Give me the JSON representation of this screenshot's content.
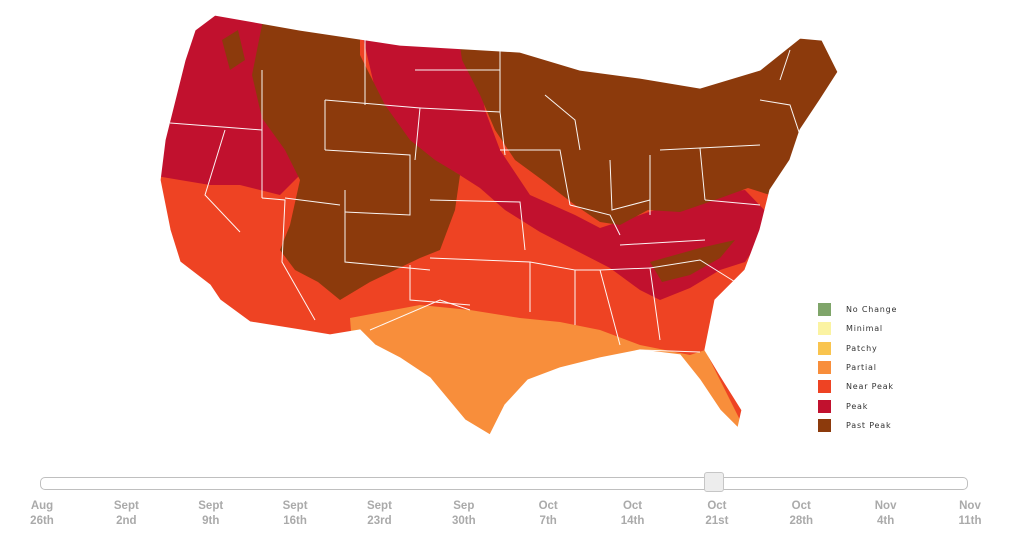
{
  "map": {
    "region_name": "Contiguous United States",
    "colors": {
      "past_peak": "#8c3a0c",
      "peak": "#c1112e",
      "near_peak": "#ee4323",
      "partial": "#f88e3b",
      "state_border": "#ffffff"
    }
  },
  "legend": {
    "items": [
      {
        "label": "No Change",
        "color": "#7fa56a"
      },
      {
        "label": "Minimal",
        "color": "#fbf3a2"
      },
      {
        "label": "Patchy",
        "color": "#f9c44e"
      },
      {
        "label": "Partial",
        "color": "#f88e3b"
      },
      {
        "label": "Near Peak",
        "color": "#ee4323"
      },
      {
        "label": "Peak",
        "color": "#c1112e"
      },
      {
        "label": "Past Peak",
        "color": "#8c3a0c"
      }
    ]
  },
  "timeline": {
    "selected_index": 8,
    "selected_label": "Oct 21st",
    "ticks": [
      {
        "line1": "Aug",
        "line2": "26th"
      },
      {
        "line1": "Sept",
        "line2": "2nd"
      },
      {
        "line1": "Sept",
        "line2": "9th"
      },
      {
        "line1": "Sept",
        "line2": "16th"
      },
      {
        "line1": "Sept",
        "line2": "23rd"
      },
      {
        "line1": "Sep",
        "line2": "30th"
      },
      {
        "line1": "Oct",
        "line2": "7th"
      },
      {
        "line1": "Oct",
        "line2": "14th"
      },
      {
        "line1": "Oct",
        "line2": "21st"
      },
      {
        "line1": "Oct",
        "line2": "28th"
      },
      {
        "line1": "Nov",
        "line2": "4th"
      },
      {
        "line1": "Nov",
        "line2": "11th"
      }
    ]
  }
}
